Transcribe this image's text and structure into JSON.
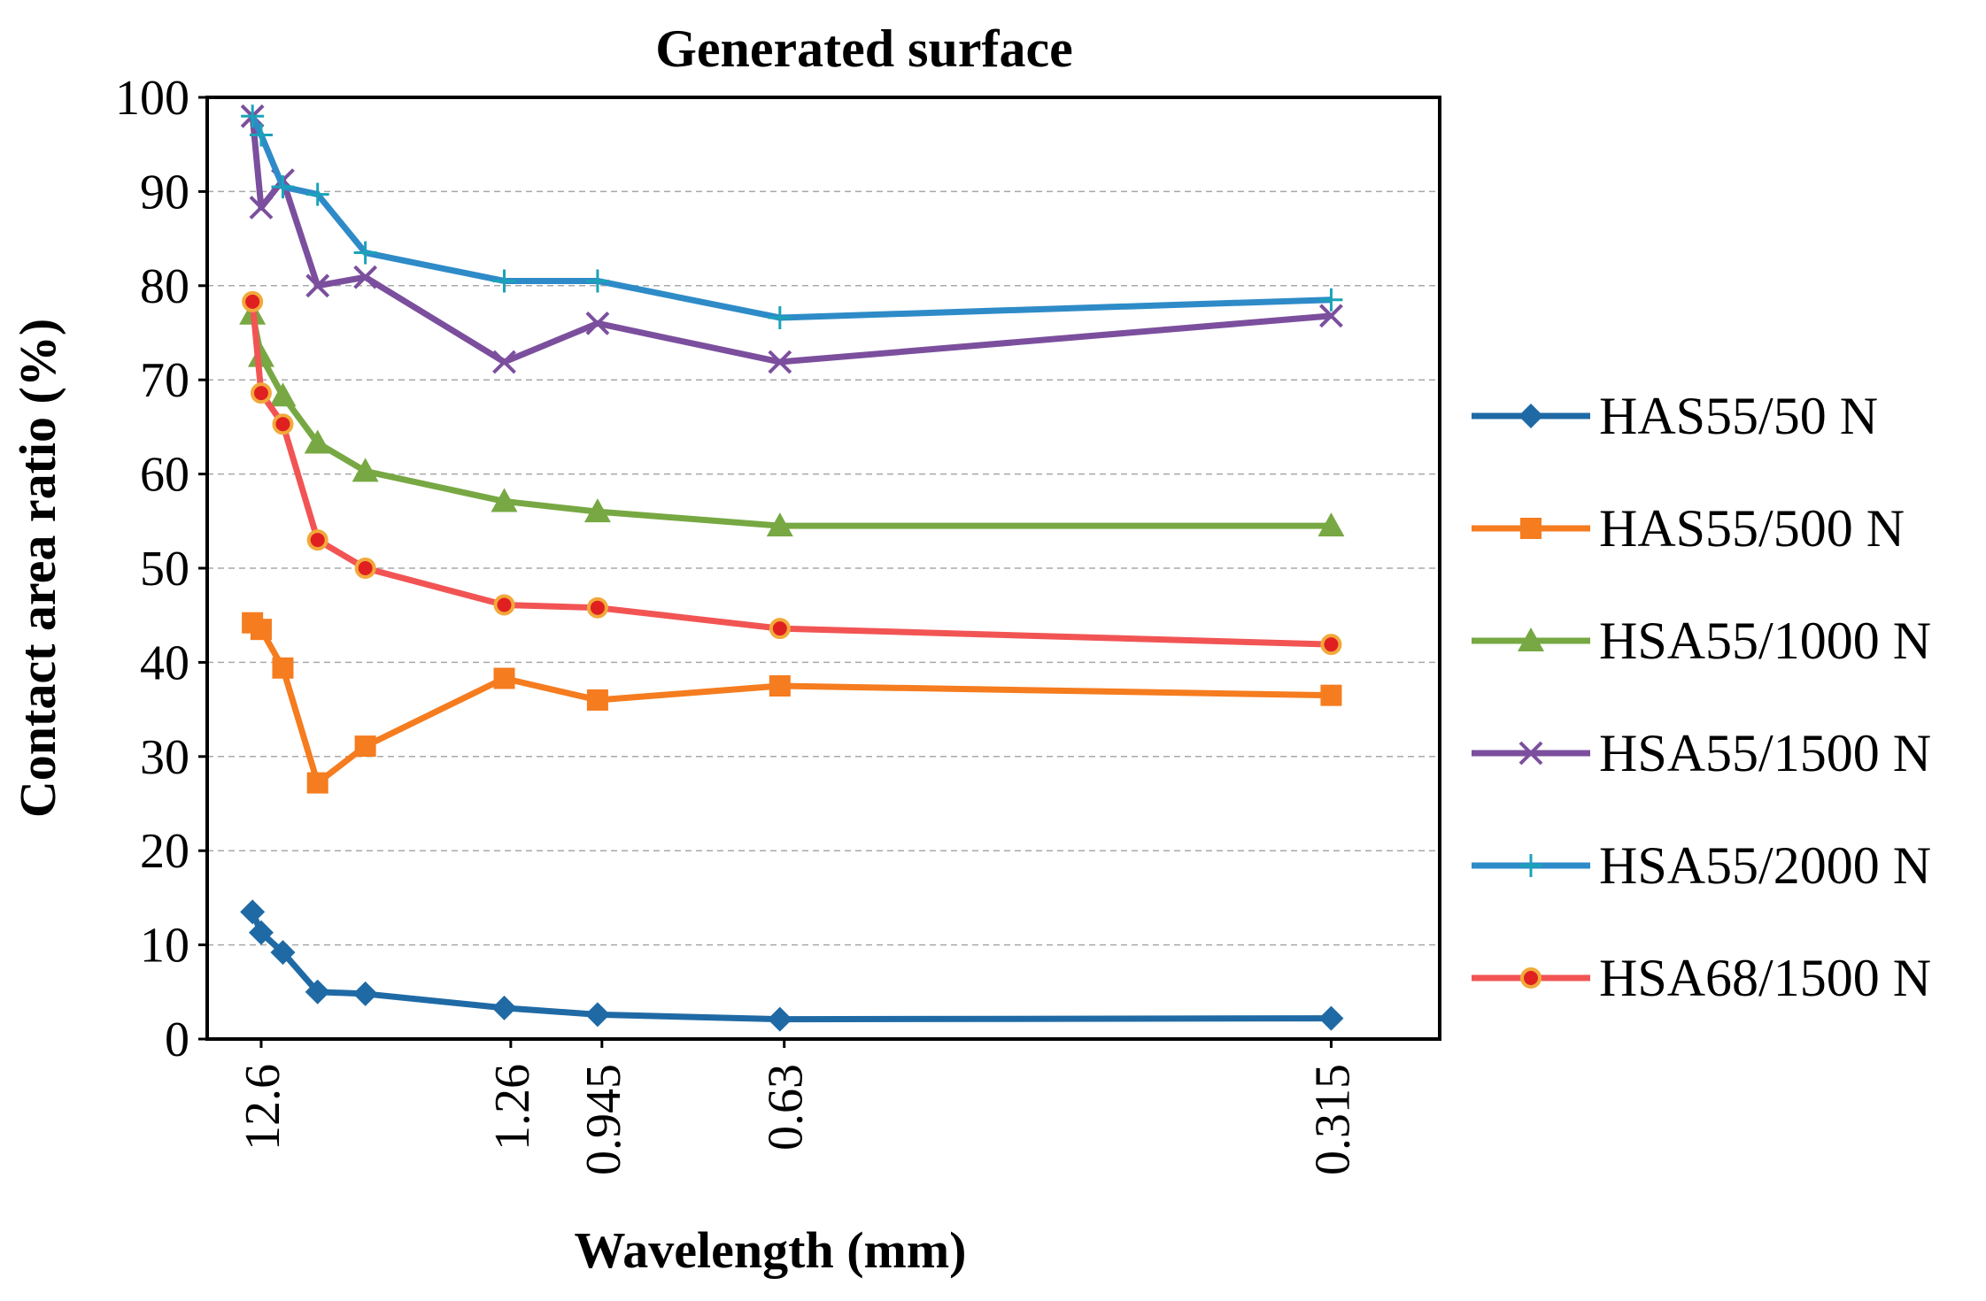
{
  "chart_data": {
    "type": "line",
    "title": "Generated surface",
    "xlabel": "Wavelength (mm)",
    "ylabel": "Contact area ratio (%)",
    "ylim": [
      0,
      100
    ],
    "y_ticks": [
      0,
      10,
      20,
      30,
      40,
      50,
      60,
      70,
      80,
      90,
      100
    ],
    "x_tick_labels": [
      {
        "label": "12.6",
        "x": 0.11
      },
      {
        "label": "1.26",
        "x": 1.26
      },
      {
        "label": "0.945",
        "x": 1.68
      },
      {
        "label": "0.63",
        "x": 2.52
      },
      {
        "label": "0.315",
        "x": 5.04
      }
    ],
    "x_positions": [
      0.07,
      0.11,
      0.21,
      0.37,
      0.59,
      1.23,
      1.66,
      2.5,
      5.04
    ],
    "grid": "horizontal",
    "legend_position": "right",
    "series": [
      {
        "name": "HAS55/50 N",
        "color": "#1F6AA5",
        "marker": "diamond",
        "values": [
          13.5,
          11.3,
          9.2,
          5.0,
          4.8,
          3.3,
          2.6,
          2.1,
          2.2
        ]
      },
      {
        "name": "HAS55/500 N",
        "color": "#F57C1F",
        "marker": "square",
        "values": [
          44.2,
          43.5,
          39.4,
          27.2,
          31.1,
          38.3,
          36.0,
          37.5,
          36.5
        ]
      },
      {
        "name": "HSA55/1000 N",
        "color": "#77A843",
        "marker": "triangle",
        "values": [
          77.0,
          72.5,
          68.3,
          63.3,
          60.3,
          57.1,
          56.0,
          54.5,
          54.5
        ]
      },
      {
        "name": "HSA55/1500 N",
        "color": "#7B4F9D",
        "marker": "x",
        "values": [
          98.0,
          88.3,
          91.2,
          80.0,
          80.9,
          71.9,
          76.0,
          71.9,
          76.8
        ]
      },
      {
        "name": "HSA55/2000 N",
        "color": "#2E8BC8",
        "marker": "plus",
        "values": [
          98.0,
          96.0,
          90.5,
          89.7,
          83.5,
          80.5,
          80.5,
          76.6,
          78.5
        ]
      },
      {
        "name": "HSA68/1500 N",
        "color": "#F25454",
        "marker": "circle",
        "values": [
          78.3,
          68.6,
          65.3,
          53.0,
          50.0,
          46.1,
          45.8,
          43.6,
          41.9
        ]
      }
    ]
  }
}
